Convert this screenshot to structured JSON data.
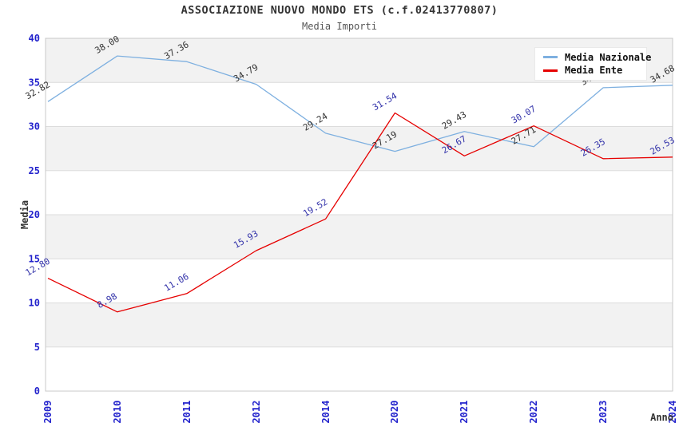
{
  "header": {
    "title": "ASSOCIAZIONE NUOVO MONDO ETS (c.f.02413770807)",
    "subtitle": "Media Importi"
  },
  "chart_data": {
    "type": "line",
    "title": "ASSOCIAZIONE NUOVO MONDO ETS (c.f.02413770807)",
    "subtitle": "Media Importi",
    "xlabel": "Anno",
    "ylabel": "Media",
    "x": [
      "2009",
      "2010",
      "2011",
      "2012",
      "2014",
      "2020",
      "2021",
      "2022",
      "2023",
      "2024"
    ],
    "series": [
      {
        "name": "Media Nazionale",
        "color": "#7EB0E0",
        "label_color": "#333333",
        "values": [
          32.82,
          38.0,
          37.36,
          34.79,
          29.24,
          27.19,
          29.43,
          27.71,
          34.4,
          34.68
        ],
        "labels": [
          "32.82",
          "38.00",
          "37.36",
          "34.79",
          "29.24",
          "27.19",
          "29.43",
          "27.71",
          "34.40",
          "34.68"
        ]
      },
      {
        "name": "Media Ente",
        "color": "#E60000",
        "label_color": "#3333AA",
        "values": [
          12.8,
          8.98,
          11.06,
          15.93,
          19.52,
          31.54,
          26.67,
          30.07,
          26.35,
          26.53
        ],
        "labels": [
          "12.80",
          "8.98",
          "11.06",
          "15.93",
          "19.52",
          "31.54",
          "26.67",
          "30.07",
          "26.35",
          "26.53"
        ]
      }
    ],
    "ylim": [
      0,
      40
    ],
    "ytick_step": 5,
    "yticks": [
      "0",
      "5",
      "10",
      "15",
      "20",
      "25",
      "30",
      "35",
      "40"
    ],
    "tick_color": "#2222CC",
    "grid": true,
    "gridline_color": "#DCDCDC",
    "plot_border_color": "#C8C8C8",
    "band_colors": [
      "#F2F2F2",
      "#FFFFFF"
    ],
    "legend_position": "top-right"
  },
  "legend": {
    "items": [
      {
        "label": "Media Nazionale",
        "color": "#7EB0E0"
      },
      {
        "label": "Media Ente",
        "color": "#E60000"
      }
    ]
  }
}
